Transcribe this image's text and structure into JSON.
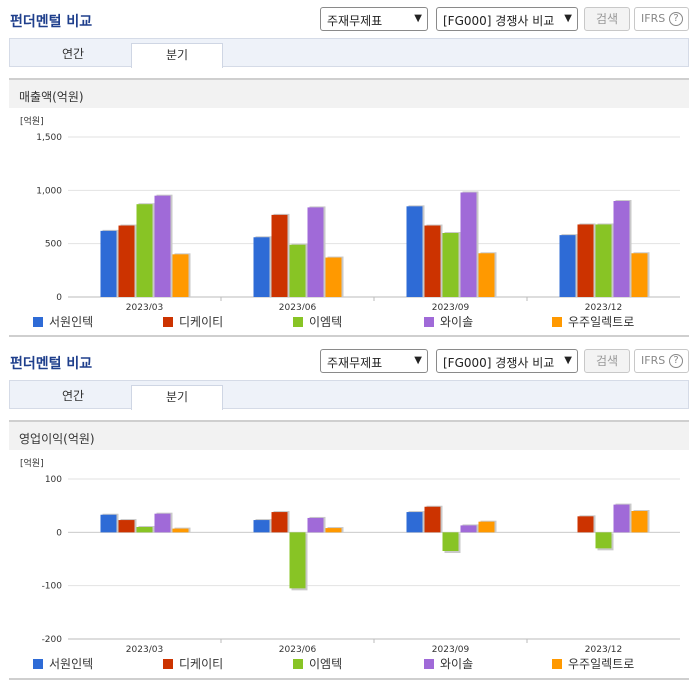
{
  "panels": [
    {
      "header": {
        "title": "펀더멘털 비교",
        "select1": "주재무제표",
        "select2": "[FG000] 경쟁사 비교",
        "search_label": "검색",
        "ifrs_label": "IFRS",
        "help_label": "?"
      },
      "tabs": [
        {
          "label": "연간"
        },
        {
          "label": "분기"
        }
      ],
      "active_tab": 1,
      "subtitle": "매출액(억원)",
      "legend": [
        "서원인텍",
        "디케이티",
        "이엠텍",
        "와이솔",
        "우주일렉트로"
      ],
      "chart_data": {
        "type": "bar",
        "title": "매출액(억원)",
        "unit_label": "[억원]",
        "categories": [
          "2023/03",
          "2023/06",
          "2023/09",
          "2023/12"
        ],
        "ylim": [
          0,
          1500
        ],
        "yticks": [
          0,
          500,
          1000,
          1500
        ],
        "ytick_labels": [
          "0",
          "500",
          "1,000",
          "1,500"
        ],
        "grid": true,
        "legend_position": "bottom",
        "series": [
          {
            "name": "서원인텍",
            "color": "#2e6bd6",
            "values": [
              620,
              560,
              850,
              580
            ]
          },
          {
            "name": "디케이티",
            "color": "#cc3300",
            "values": [
              670,
              770,
              670,
              680
            ]
          },
          {
            "name": "이엠텍",
            "color": "#88c425",
            "values": [
              870,
              490,
              600,
              680
            ]
          },
          {
            "name": "와이솔",
            "color": "#a06ad8",
            "values": [
              950,
              840,
              980,
              900
            ]
          },
          {
            "name": "우주일렉트로",
            "color": "#ff9900",
            "values": [
              400,
              370,
              410,
              410
            ]
          }
        ]
      }
    },
    {
      "header": {
        "title": "펀더멘털 비교",
        "select1": "주재무제표",
        "select2": "[FG000] 경쟁사 비교",
        "search_label": "검색",
        "ifrs_label": "IFRS",
        "help_label": "?"
      },
      "tabs": [
        {
          "label": "연간"
        },
        {
          "label": "분기"
        }
      ],
      "active_tab": 1,
      "subtitle": "영업이익(억원)",
      "legend": [
        "서원인텍",
        "디케이티",
        "이엠텍",
        "와이솔",
        "우주일렉트로"
      ],
      "chart_data": {
        "type": "bar",
        "title": "영업이익(억원)",
        "unit_label": "[억원]",
        "categories": [
          "2023/03",
          "2023/06",
          "2023/09",
          "2023/12"
        ],
        "ylim": [
          -200,
          100
        ],
        "yticks": [
          -200,
          -100,
          0,
          100
        ],
        "ytick_labels": [
          "-200",
          "-100",
          "0",
          "100"
        ],
        "grid": true,
        "legend_position": "bottom",
        "series": [
          {
            "name": "서원인텍",
            "color": "#2e6bd6",
            "values": [
              33,
              23,
              38,
              null
            ]
          },
          {
            "name": "디케이티",
            "color": "#cc3300",
            "values": [
              23,
              38,
              48,
              30
            ]
          },
          {
            "name": "이엠텍",
            "color": "#88c425",
            "values": [
              10,
              -105,
              -35,
              -30
            ]
          },
          {
            "name": "와이솔",
            "color": "#a06ad8",
            "values": [
              35,
              27,
              13,
              52
            ]
          },
          {
            "name": "우주일렉트로",
            "color": "#ff9900",
            "values": [
              7,
              8,
              20,
              40
            ]
          }
        ]
      }
    }
  ]
}
